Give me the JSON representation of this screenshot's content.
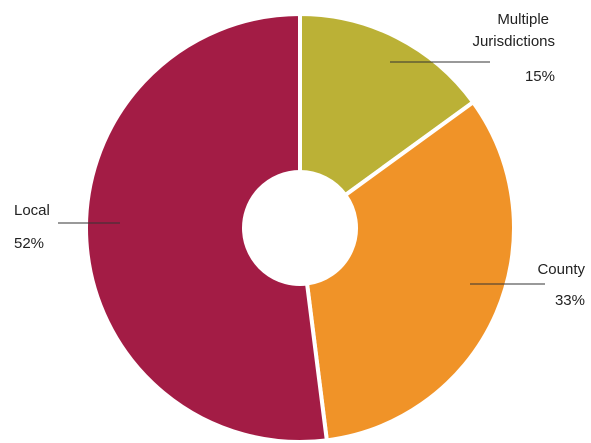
{
  "chart_data": {
    "type": "pie",
    "donut": true,
    "title": "",
    "categories": [
      "Multiple Jurisdictions",
      "County",
      "Local"
    ],
    "values": [
      15,
      33,
      52
    ],
    "labels": [
      {
        "name_lines": [
          "Multiple",
          "Jurisdictions"
        ],
        "pct": "15%"
      },
      {
        "name_lines": [
          "County"
        ],
        "pct": "33%"
      },
      {
        "name_lines": [
          "Local"
        ],
        "pct": "52%"
      }
    ],
    "colors": [
      "#BBB136",
      "#F09328",
      "#A31C45"
    ],
    "legend": "none"
  }
}
